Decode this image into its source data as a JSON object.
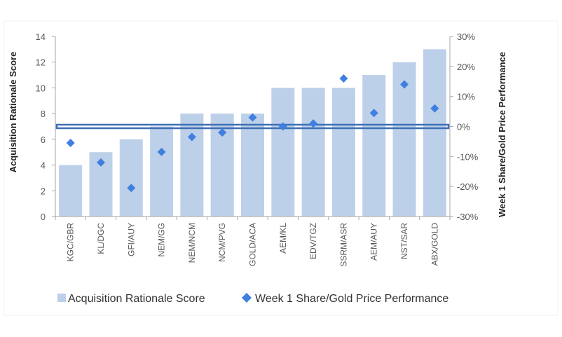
{
  "chart_data": {
    "type": "bar",
    "categories": [
      "KGC/GBR",
      "KL/DGC",
      "GFI/AUY",
      "NEM/GG",
      "NEM/NCM",
      "NCM/PVG",
      "GOLD/ACA",
      "AEM/KL",
      "EDV/TGZ",
      "SSRM/ASR",
      "AEM/AUY",
      "NST/SAR",
      "ABX/GOLD"
    ],
    "series": [
      {
        "name": "Acquisition Rationale Score",
        "type": "bar",
        "axis": "left",
        "values": [
          4,
          5,
          6,
          7,
          8,
          8,
          8,
          10,
          10,
          10,
          11,
          12,
          13
        ],
        "color": "#bdd0e9"
      },
      {
        "name": "Week 1 Share/Gold Price Performance",
        "type": "scatter",
        "axis": "right",
        "marker": "diamond",
        "values": [
          -5.5,
          -12,
          -20.5,
          -8.5,
          -3.5,
          -2,
          3,
          0,
          1,
          16,
          4.5,
          14,
          6
        ],
        "color": "#3f7fe0"
      }
    ],
    "ylabel": "Acquisition Rationale Score",
    "ylim": [
      0,
      14
    ],
    "yticks": [
      "0",
      "2",
      "4",
      "6",
      "8",
      "10",
      "12",
      "14"
    ],
    "y2label": "Week 1 Share/Gold Price Performance",
    "y2lim": [
      -30,
      30
    ],
    "y2ticks": [
      "-30%",
      "-20%",
      "-10%",
      "0%",
      "10%",
      "20%",
      "30%"
    ],
    "highlight_band": {
      "level": 0,
      "color": "#3f6fb4"
    },
    "grid": false,
    "legend_position": "bottom"
  },
  "legend": {
    "bar_label": "Acquisition Rationale Score",
    "diamond_label": "Week 1 Share/Gold Price Performance"
  }
}
